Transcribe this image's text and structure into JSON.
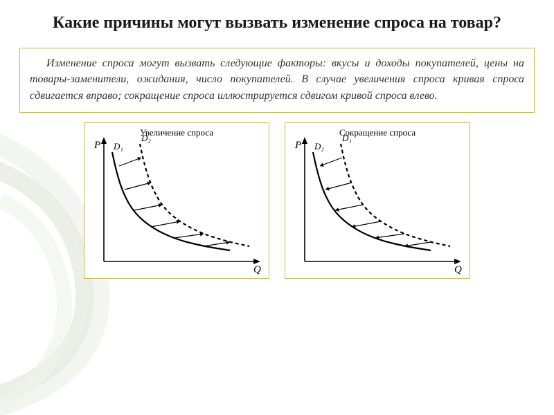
{
  "title": {
    "text": "Какие причины могут вызвать изменение спроса на товар?",
    "fontsize": 24,
    "color": "#1a1a1a"
  },
  "explanation": {
    "text": "Изменение спроса могут вызвать следующие факторы: вкусы и доходы покупателей, цены на товары-заменители, ожидания, число покупателей. В случае увеличения спроса кривая спроса сдвигается вправо; сокращение спроса иллюстрируется сдвигом кривой спроса влево.",
    "fontsize": 16,
    "border_color": "#c2b84a",
    "text_color": "#333333"
  },
  "chart_increase": {
    "type": "line",
    "caption": "Увеличение спроса",
    "caption_fontsize": 13,
    "border_color": "#c2b84a",
    "axis_color": "#000000",
    "x_label": "Q",
    "y_label": "P",
    "curve_D1": {
      "label": "D₁",
      "style": "solid",
      "stroke_width": 2.2,
      "points": [
        [
          40,
          42
        ],
        [
          46,
          70
        ],
        [
          56,
          102
        ],
        [
          72,
          130
        ],
        [
          98,
          152
        ],
        [
          132,
          168
        ],
        [
          172,
          178
        ],
        [
          210,
          184
        ]
      ]
    },
    "curve_D2": {
      "label": "D₂",
      "style": "dashed",
      "stroke_width": 2.2,
      "points": [
        [
          80,
          30
        ],
        [
          86,
          58
        ],
        [
          96,
          90
        ],
        [
          112,
          120
        ],
        [
          136,
          142
        ],
        [
          170,
          160
        ],
        [
          210,
          172
        ],
        [
          238,
          178
        ]
      ]
    },
    "arrows": [
      {
        "from": [
          50,
          62
        ],
        "to": [
          82,
          50
        ]
      },
      {
        "from": [
          58,
          96
        ],
        "to": [
          96,
          86
        ]
      },
      {
        "from": [
          72,
          126
        ],
        "to": [
          112,
          118
        ]
      },
      {
        "from": [
          96,
          150
        ],
        "to": [
          138,
          142
        ]
      },
      {
        "from": [
          130,
          166
        ],
        "to": [
          172,
          160
        ]
      },
      {
        "from": [
          172,
          178
        ],
        "to": [
          210,
          172
        ]
      }
    ],
    "arrow_stroke": "#000000"
  },
  "chart_decrease": {
    "type": "line",
    "caption": "Сокращение спроса",
    "caption_fontsize": 13,
    "border_color": "#c2b84a",
    "axis_color": "#000000",
    "x_label": "Q",
    "y_label": "P",
    "curve_D1": {
      "label": "D₁",
      "style": "dashed",
      "stroke_width": 2.2,
      "points": [
        [
          80,
          30
        ],
        [
          86,
          58
        ],
        [
          96,
          90
        ],
        [
          112,
          120
        ],
        [
          136,
          142
        ],
        [
          170,
          160
        ],
        [
          210,
          172
        ],
        [
          238,
          178
        ]
      ]
    },
    "curve_D2": {
      "label": "D₂",
      "style": "solid",
      "stroke_width": 2.2,
      "points": [
        [
          40,
          42
        ],
        [
          46,
          70
        ],
        [
          56,
          102
        ],
        [
          72,
          130
        ],
        [
          98,
          152
        ],
        [
          132,
          168
        ],
        [
          172,
          178
        ],
        [
          210,
          184
        ]
      ]
    },
    "arrows": [
      {
        "from": [
          82,
          50
        ],
        "to": [
          50,
          62
        ]
      },
      {
        "from": [
          96,
          86
        ],
        "to": [
          58,
          96
        ]
      },
      {
        "from": [
          112,
          118
        ],
        "to": [
          72,
          126
        ]
      },
      {
        "from": [
          138,
          142
        ],
        "to": [
          96,
          150
        ]
      },
      {
        "from": [
          172,
          160
        ],
        "to": [
          130,
          166
        ]
      },
      {
        "from": [
          210,
          172
        ],
        "to": [
          172,
          178
        ]
      }
    ],
    "arrow_stroke": "#000000"
  },
  "decor": {
    "swirl_color": "#8fa87a"
  }
}
